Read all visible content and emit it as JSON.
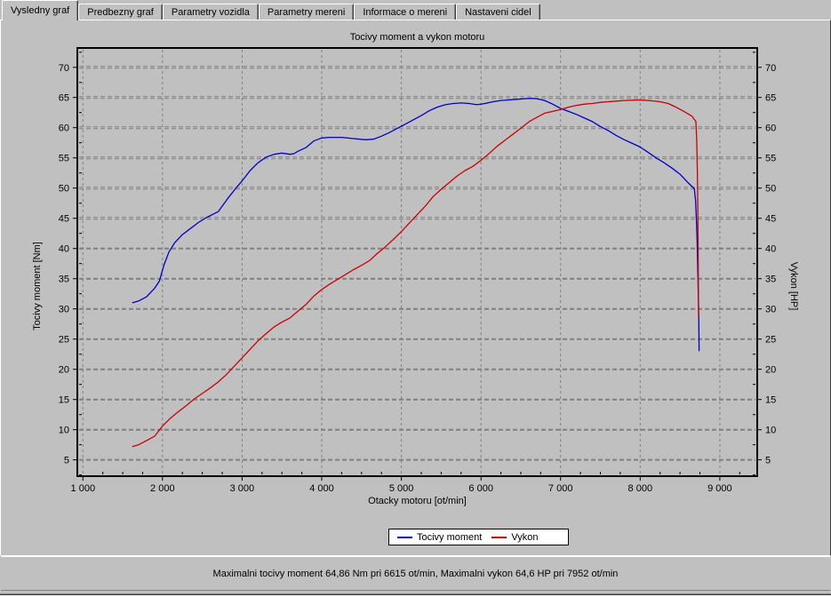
{
  "tabs": {
    "items": [
      {
        "label": "Vysledny graf",
        "active": true
      },
      {
        "label": "Predbezny graf",
        "active": false
      },
      {
        "label": "Parametry vozidla",
        "active": false
      },
      {
        "label": "Parametry mereni",
        "active": false
      },
      {
        "label": "Informace o mereni",
        "active": false
      },
      {
        "label": "Nastaveni cidel",
        "active": false
      }
    ]
  },
  "chart_data": {
    "type": "line",
    "title": "Tocivy moment a vykon motoru",
    "xlabel": "Otacky motoru [ot/min]",
    "ylabel_left": "Tocivy moment [Nm]",
    "ylabel_right": "Vykon [HP]",
    "xlim": [
      930,
      9470
    ],
    "ylim": [
      2.3,
      73.2
    ],
    "grid": true,
    "legend_position": "bottom-center",
    "x_ticks": [
      1000,
      2000,
      3000,
      4000,
      5000,
      6000,
      7000,
      8000,
      9000
    ],
    "x_tick_labels": [
      "1 000",
      "2 000",
      "3 000",
      "4 000",
      "5 000",
      "6 000",
      "7 000",
      "8 000",
      "9 000"
    ],
    "y_ticks": [
      5,
      10,
      15,
      20,
      25,
      30,
      35,
      40,
      45,
      50,
      55,
      60,
      65,
      70
    ],
    "x_minor_step": 250,
    "y_minor_step": 2.5,
    "series": [
      {
        "name": "Tocivy moment",
        "unit": "Nm",
        "axis": "left",
        "color": "#0000CC",
        "max_label": "64,86 Nm pri 6615 ot/min",
        "points": [
          [
            1620,
            31.0
          ],
          [
            1700,
            31.3
          ],
          [
            1800,
            32.0
          ],
          [
            1900,
            33.4
          ],
          [
            1960,
            34.6
          ],
          [
            2020,
            37.3
          ],
          [
            2080,
            39.4
          ],
          [
            2150,
            40.9
          ],
          [
            2250,
            42.3
          ],
          [
            2350,
            43.3
          ],
          [
            2450,
            44.3
          ],
          [
            2550,
            45.1
          ],
          [
            2700,
            46.1
          ],
          [
            2820,
            48.3
          ],
          [
            2910,
            49.8
          ],
          [
            3000,
            51.2
          ],
          [
            3100,
            52.9
          ],
          [
            3200,
            54.2
          ],
          [
            3300,
            55.1
          ],
          [
            3400,
            55.6
          ],
          [
            3500,
            55.8
          ],
          [
            3600,
            55.6
          ],
          [
            3650,
            55.7
          ],
          [
            3700,
            56.1
          ],
          [
            3800,
            56.7
          ],
          [
            3900,
            57.8
          ],
          [
            4000,
            58.3
          ],
          [
            4100,
            58.4
          ],
          [
            4250,
            58.4
          ],
          [
            4400,
            58.2
          ],
          [
            4550,
            58.0
          ],
          [
            4650,
            58.1
          ],
          [
            4750,
            58.6
          ],
          [
            4850,
            59.2
          ],
          [
            4950,
            59.9
          ],
          [
            5050,
            60.6
          ],
          [
            5150,
            61.3
          ],
          [
            5250,
            62.0
          ],
          [
            5350,
            62.8
          ],
          [
            5450,
            63.4
          ],
          [
            5550,
            63.8
          ],
          [
            5650,
            64.0
          ],
          [
            5750,
            64.1
          ],
          [
            5850,
            64.0
          ],
          [
            5950,
            63.8
          ],
          [
            6050,
            64.0
          ],
          [
            6150,
            64.3
          ],
          [
            6250,
            64.5
          ],
          [
            6350,
            64.6
          ],
          [
            6450,
            64.7
          ],
          [
            6550,
            64.8
          ],
          [
            6615,
            64.86
          ],
          [
            6700,
            64.8
          ],
          [
            6800,
            64.5
          ],
          [
            6900,
            63.9
          ],
          [
            7000,
            63.2
          ],
          [
            7100,
            62.7
          ],
          [
            7200,
            62.2
          ],
          [
            7300,
            61.6
          ],
          [
            7400,
            61.0
          ],
          [
            7500,
            60.2
          ],
          [
            7600,
            59.5
          ],
          [
            7700,
            58.7
          ],
          [
            7800,
            58.0
          ],
          [
            7900,
            57.4
          ],
          [
            8000,
            56.8
          ],
          [
            8100,
            55.9
          ],
          [
            8200,
            55.0
          ],
          [
            8300,
            54.2
          ],
          [
            8400,
            53.3
          ],
          [
            8500,
            52.3
          ],
          [
            8600,
            50.9
          ],
          [
            8680,
            49.9
          ],
          [
            8695,
            48.0
          ],
          [
            8705,
            45.0
          ],
          [
            8715,
            41.0
          ],
          [
            8725,
            35.0
          ],
          [
            8735,
            29.0
          ],
          [
            8740,
            23.0
          ]
        ]
      },
      {
        "name": "Vykon",
        "unit": "HP",
        "axis": "right",
        "color": "#CC0000",
        "max_label": "64,6 HP pri 7952 ot/min",
        "points": [
          [
            1620,
            7.2
          ],
          [
            1700,
            7.5
          ],
          [
            1800,
            8.2
          ],
          [
            1900,
            8.9
          ],
          [
            2000,
            10.6
          ],
          [
            2100,
            11.9
          ],
          [
            2200,
            13.0
          ],
          [
            2300,
            14.0
          ],
          [
            2400,
            15.1
          ],
          [
            2500,
            16.0
          ],
          [
            2600,
            16.9
          ],
          [
            2700,
            17.9
          ],
          [
            2800,
            19.1
          ],
          [
            2900,
            20.5
          ],
          [
            3000,
            21.9
          ],
          [
            3100,
            23.3
          ],
          [
            3200,
            24.7
          ],
          [
            3300,
            25.9
          ],
          [
            3400,
            27.0
          ],
          [
            3500,
            27.8
          ],
          [
            3600,
            28.5
          ],
          [
            3700,
            29.6
          ],
          [
            3800,
            30.7
          ],
          [
            3900,
            32.1
          ],
          [
            4000,
            33.2
          ],
          [
            4100,
            34.1
          ],
          [
            4200,
            34.9
          ],
          [
            4300,
            35.7
          ],
          [
            4400,
            36.5
          ],
          [
            4500,
            37.2
          ],
          [
            4600,
            38.0
          ],
          [
            4700,
            39.2
          ],
          [
            4800,
            40.3
          ],
          [
            4900,
            41.5
          ],
          [
            5000,
            42.8
          ],
          [
            5100,
            44.2
          ],
          [
            5200,
            45.6
          ],
          [
            5300,
            47.0
          ],
          [
            5400,
            48.6
          ],
          [
            5500,
            49.8
          ],
          [
            5600,
            50.9
          ],
          [
            5700,
            52.0
          ],
          [
            5800,
            52.9
          ],
          [
            5900,
            53.6
          ],
          [
            6000,
            54.6
          ],
          [
            6100,
            55.7
          ],
          [
            6200,
            56.9
          ],
          [
            6300,
            57.9
          ],
          [
            6400,
            58.9
          ],
          [
            6500,
            59.9
          ],
          [
            6615,
            61.1
          ],
          [
            6700,
            61.7
          ],
          [
            6800,
            62.4
          ],
          [
            6900,
            62.7
          ],
          [
            7000,
            63.0
          ],
          [
            7100,
            63.4
          ],
          [
            7200,
            63.7
          ],
          [
            7300,
            63.9
          ],
          [
            7400,
            64.0
          ],
          [
            7500,
            64.2
          ],
          [
            7600,
            64.3
          ],
          [
            7700,
            64.4
          ],
          [
            7800,
            64.5
          ],
          [
            7900,
            64.55
          ],
          [
            7952,
            64.6
          ],
          [
            8050,
            64.55
          ],
          [
            8150,
            64.45
          ],
          [
            8250,
            64.3
          ],
          [
            8350,
            64.0
          ],
          [
            8450,
            63.4
          ],
          [
            8550,
            62.7
          ],
          [
            8650,
            61.9
          ],
          [
            8700,
            61.0
          ],
          [
            8710,
            58.0
          ],
          [
            8718,
            53.0
          ],
          [
            8724,
            46.0
          ],
          [
            8729,
            38.0
          ],
          [
            8733,
            28.6
          ]
        ]
      }
    ]
  },
  "status": {
    "text": "Maximalni tocivy moment 64,86 Nm pri 6615 ot/min,  Maximalni vykon 64,6 HP pri 7952 ot/min"
  },
  "colors": {
    "window_bg": "#c0c0c0",
    "grid": "#808080",
    "axis": "#000000",
    "legend_bg": "#ffffff",
    "torque_line": "#0000CC",
    "power_line": "#CC0000"
  }
}
